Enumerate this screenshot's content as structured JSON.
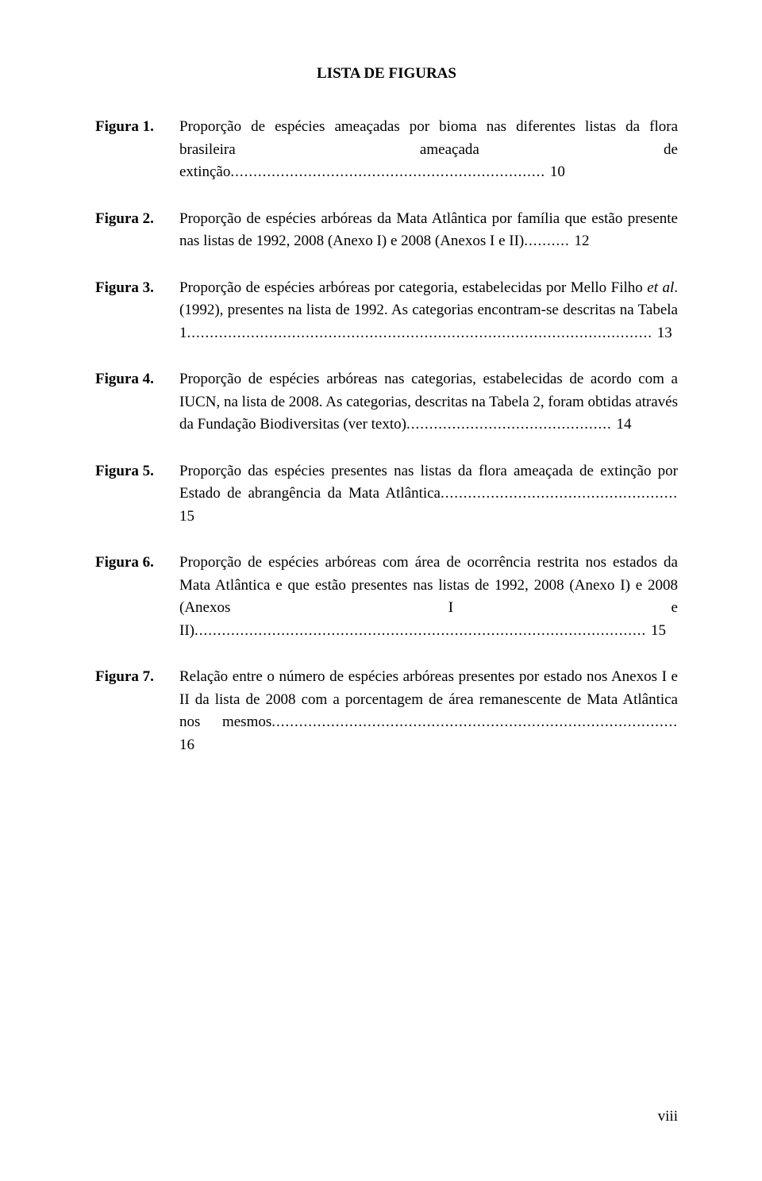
{
  "title": "LISTA DE FIGURAS",
  "entries": [
    {
      "label": "Figura 1.",
      "segments": [
        {
          "text": "Proporção de espécies ameaçadas por bioma nas diferentes listas da flora brasileira ameaçada de extinção"
        }
      ],
      "dots": ".....................................................................",
      "page": "10"
    },
    {
      "label": "Figura 2.",
      "segments": [
        {
          "text": "Proporção de espécies arbóreas da Mata Atlântica por família que estão presente nas listas de 1992, 2008 (Anexo I) e 2008 (Anexos I e II)"
        }
      ],
      "dots": "..........",
      "page": "12"
    },
    {
      "label": "Figura 3.",
      "segments": [
        {
          "text": "Proporção de espécies arbóreas por categoria, estabelecidas por Mello Filho "
        },
        {
          "text": "et al",
          "italic": true
        },
        {
          "text": ". (1992), presentes na lista de 1992. As categorias encontram-se descritas na Tabela 1"
        }
      ],
      "dots": "......................................................................................................",
      "page": "13"
    },
    {
      "label": "Figura 4.",
      "segments": [
        {
          "text": "Proporção de espécies arbóreas nas categorias, estabelecidas de acordo com a IUCN, na lista de 2008. As categorias, descritas na Tabela 2, foram obtidas através da Fundação Biodiversitas (ver texto)"
        }
      ],
      "dots": ".............................................",
      "page": "14"
    },
    {
      "label": "Figura 5.",
      "segments": [
        {
          "text": "Proporção das espécies presentes nas listas da flora ameaçada de extinção por Estado de abrangência da Mata Atlântica"
        }
      ],
      "dots": "....................................................",
      "page": "15"
    },
    {
      "label": "Figura 6.",
      "segments": [
        {
          "text": "Proporção de espécies arbóreas com área de ocorrência restrita nos estados da Mata Atlântica e que estão presentes nas listas de 1992, 2008 (Anexo I) e 2008 (Anexos I e II)"
        }
      ],
      "dots": "...................................................................................................",
      "page": "15"
    },
    {
      "label": "Figura 7.",
      "segments": [
        {
          "text": "Relação entre o número de espécies arbóreas presentes por estado nos Anexos I e II da lista de 2008 com a porcentagem de área remanescente de Mata Atlântica nos mesmos"
        }
      ],
      "dots": ".........................................................................................",
      "page": "16"
    }
  ],
  "pageNumber": "viii"
}
